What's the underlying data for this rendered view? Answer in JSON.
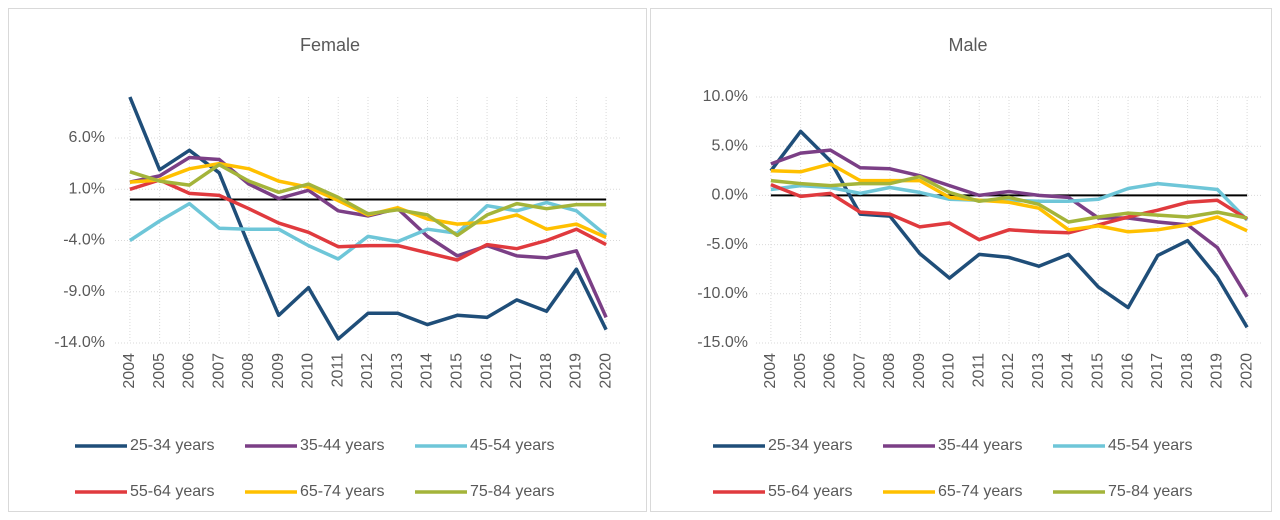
{
  "chart_data": [
    {
      "type": "line",
      "title": "Female",
      "categories": [
        "2004",
        "2005",
        "2006",
        "2007",
        "2008",
        "2009",
        "2010",
        "2011",
        "2012",
        "2013",
        "2014",
        "2015",
        "2016",
        "2017",
        "2018",
        "2019",
        "2020"
      ],
      "ylim": [
        -14,
        10
      ],
      "yticks": [
        {
          "value": 6,
          "label": "6.0%"
        },
        {
          "value": 1,
          "label": "1.0%"
        },
        {
          "value": -4,
          "label": "-4.0%"
        },
        {
          "value": -9,
          "label": "-9.0%"
        },
        {
          "value": -14,
          "label": "-14.0%"
        }
      ],
      "grid": true,
      "hline": 0,
      "series": [
        {
          "name": "25-34 years",
          "color": "#1f4e79",
          "values": [
            10.0,
            2.9,
            4.8,
            2.6,
            -4.5,
            -11.3,
            -8.6,
            -13.6,
            -11.1,
            -11.1,
            -12.2,
            -11.3,
            -11.5,
            -9.8,
            -10.9,
            -6.8,
            -12.7
          ]
        },
        {
          "name": "35-44 years",
          "color": "#7b3f86",
          "values": [
            1.7,
            2.3,
            4.1,
            3.9,
            1.5,
            0.1,
            0.9,
            -1.1,
            -1.6,
            -0.9,
            -3.6,
            -5.5,
            -4.5,
            -5.5,
            -5.7,
            -5.0,
            -11.5
          ]
        },
        {
          "name": "45-54 years",
          "color": "#6ec6d8",
          "values": [
            -4.0,
            -2.1,
            -0.4,
            -2.8,
            -2.9,
            -2.9,
            -4.5,
            -5.8,
            -3.6,
            -4.1,
            -2.9,
            -3.3,
            -0.6,
            -1.1,
            -0.3,
            -1.1,
            -3.5
          ]
        },
        {
          "name": "55-64 years",
          "color": "#e03a3e",
          "values": [
            1.0,
            1.9,
            0.6,
            0.4,
            -0.9,
            -2.3,
            -3.2,
            -4.6,
            -4.5,
            -4.5,
            -5.2,
            -5.9,
            -4.4,
            -4.8,
            -4.0,
            -2.9,
            -4.4
          ]
        },
        {
          "name": "65-74 years",
          "color": "#ffc000",
          "values": [
            1.7,
            1.9,
            3.0,
            3.5,
            3.0,
            1.8,
            1.2,
            -0.1,
            -1.5,
            -0.8,
            -1.9,
            -2.4,
            -2.2,
            -1.5,
            -2.9,
            -2.4,
            -3.7
          ]
        },
        {
          "name": "75-84 years",
          "color": "#a4b43a",
          "values": [
            2.7,
            1.8,
            1.4,
            3.4,
            1.8,
            0.7,
            1.5,
            0.2,
            -1.4,
            -1.0,
            -1.5,
            -3.5,
            -1.5,
            -0.4,
            -0.9,
            -0.5,
            -0.5
          ]
        }
      ]
    },
    {
      "type": "line",
      "title": "Male",
      "categories": [
        "2004",
        "2005",
        "2006",
        "2007",
        "2008",
        "2009",
        "2010",
        "2011",
        "2012",
        "2013",
        "2014",
        "2015",
        "2016",
        "2017",
        "2018",
        "2019",
        "2020"
      ],
      "ylim": [
        -15,
        10
      ],
      "yticks": [
        {
          "value": 10,
          "label": "10.0%"
        },
        {
          "value": 5,
          "label": "5.0%"
        },
        {
          "value": 0,
          "label": "0.0%"
        },
        {
          "value": -5,
          "label": "-5.0%"
        },
        {
          "value": -10,
          "label": "-10.0%"
        },
        {
          "value": -15,
          "label": "-15.0%"
        }
      ],
      "grid": true,
      "hline": 0,
      "series": [
        {
          "name": "25-34 years",
          "color": "#1f4e79",
          "values": [
            2.5,
            6.5,
            3.5,
            -1.9,
            -2.1,
            -5.9,
            -8.4,
            -6.0,
            -6.3,
            -7.2,
            -6.0,
            -9.3,
            -11.4,
            -6.1,
            -4.6,
            -8.3,
            -13.4
          ]
        },
        {
          "name": "35-44 years",
          "color": "#7b3f86",
          "values": [
            3.2,
            4.3,
            4.6,
            2.8,
            2.7,
            2.0,
            1.0,
            0.0,
            0.4,
            0.0,
            -0.2,
            -2.3,
            -2.3,
            -2.7,
            -3.0,
            -5.3,
            -10.3
          ]
        },
        {
          "name": "45-54 years",
          "color": "#6ec6d8",
          "values": [
            0.6,
            1.0,
            0.8,
            0.2,
            0.8,
            0.3,
            -0.4,
            -0.5,
            -0.5,
            -0.6,
            -0.6,
            -0.4,
            0.7,
            1.2,
            0.9,
            0.6,
            -2.5
          ]
        },
        {
          "name": "55-64 years",
          "color": "#e03a3e",
          "values": [
            1.1,
            -0.1,
            0.2,
            -1.7,
            -1.9,
            -3.2,
            -2.8,
            -4.5,
            -3.5,
            -3.7,
            -3.8,
            -3.0,
            -2.2,
            -1.5,
            -0.7,
            -0.5,
            -2.4
          ]
        },
        {
          "name": "65-74 years",
          "color": "#ffc000",
          "values": [
            2.5,
            2.4,
            3.2,
            1.5,
            1.5,
            1.5,
            -0.2,
            -0.5,
            -0.7,
            -1.3,
            -3.5,
            -3.1,
            -3.7,
            -3.5,
            -3.0,
            -2.2,
            -3.6
          ]
        },
        {
          "name": "75-84 years",
          "color": "#a4b43a",
          "values": [
            1.5,
            1.2,
            1.0,
            1.2,
            1.2,
            1.9,
            0.3,
            -0.6,
            -0.2,
            -0.9,
            -2.7,
            -2.2,
            -1.8,
            -2.0,
            -2.2,
            -1.7,
            -2.3
          ]
        }
      ]
    }
  ]
}
